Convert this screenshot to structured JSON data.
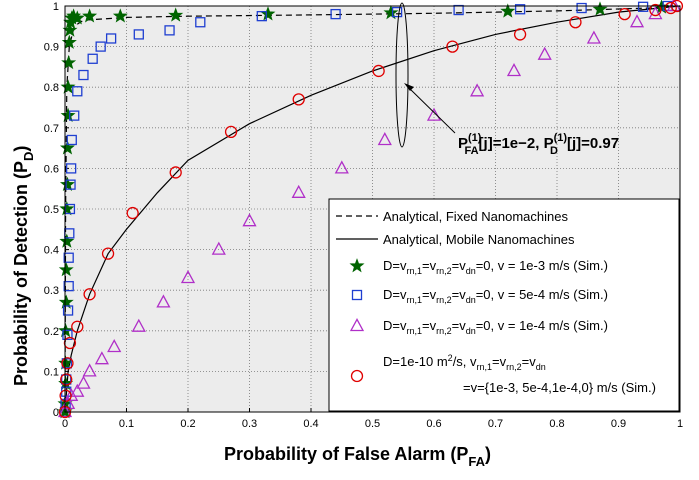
{
  "chart_data": {
    "type": "line",
    "xlabel": {
      "main": "Probability of False Alarm (P",
      "sub": "FA",
      "tail": ")"
    },
    "ylabel": {
      "main": "Probability of Detection (P",
      "sub": "D",
      "tail": ")"
    },
    "xlim": [
      0,
      1
    ],
    "ylim": [
      0,
      1
    ],
    "xticks": [
      "0",
      "0.1",
      "0.2",
      "0.3",
      "0.4",
      "0.5",
      "0.6",
      "0.7",
      "0.8",
      "0.9",
      "1"
    ],
    "yticks": [
      "0",
      "0.1",
      "0.2",
      "0.3",
      "0.4",
      "0.5",
      "0.6",
      "0.7",
      "0.8",
      "0.9",
      "1"
    ],
    "grid": true,
    "legend_placement": "bottom-right",
    "series": [
      {
        "key": "fixed",
        "style": "dashed-line",
        "color": "#000000",
        "points": [
          [
            0,
            0
          ],
          [
            0.001,
            0.5
          ],
          [
            0.003,
            0.8
          ],
          [
            0.007,
            0.9
          ],
          [
            0.015,
            0.95
          ],
          [
            0.03,
            0.965
          ],
          [
            0.1,
            0.972
          ],
          [
            0.2,
            0.975
          ],
          [
            0.4,
            0.978
          ],
          [
            0.6,
            0.982
          ],
          [
            0.8,
            0.988
          ],
          [
            0.95,
            0.995
          ],
          [
            1,
            1
          ]
        ]
      },
      {
        "key": "mobile",
        "style": "solid-line",
        "color": "#000000",
        "points": [
          [
            0,
            0
          ],
          [
            0.005,
            0.1
          ],
          [
            0.01,
            0.14
          ],
          [
            0.02,
            0.2
          ],
          [
            0.04,
            0.29
          ],
          [
            0.07,
            0.39
          ],
          [
            0.1,
            0.45
          ],
          [
            0.15,
            0.54
          ],
          [
            0.2,
            0.62
          ],
          [
            0.3,
            0.71
          ],
          [
            0.4,
            0.78
          ],
          [
            0.5,
            0.84
          ],
          [
            0.6,
            0.89
          ],
          [
            0.7,
            0.93
          ],
          [
            0.8,
            0.96
          ],
          [
            0.9,
            0.985
          ],
          [
            1,
            1
          ]
        ]
      },
      {
        "key": "star",
        "style": "marker-star",
        "color": "#006400",
        "points": [
          [
            0,
            0
          ],
          [
            0,
            0.02
          ],
          [
            0.001,
            0.07
          ],
          [
            0.001,
            0.12
          ],
          [
            0.001,
            0.2
          ],
          [
            0.002,
            0.27
          ],
          [
            0.002,
            0.35
          ],
          [
            0.003,
            0.42
          ],
          [
            0.003,
            0.5
          ],
          [
            0.004,
            0.56
          ],
          [
            0.004,
            0.65
          ],
          [
            0.005,
            0.73
          ],
          [
            0.005,
            0.8
          ],
          [
            0.006,
            0.86
          ],
          [
            0.007,
            0.91
          ],
          [
            0.008,
            0.94
          ],
          [
            0.009,
            0.96
          ],
          [
            0.011,
            0.97
          ],
          [
            0.014,
            0.975
          ],
          [
            0.02,
            0.97
          ],
          [
            0.04,
            0.975
          ],
          [
            0.09,
            0.975
          ],
          [
            0.18,
            0.977
          ],
          [
            0.33,
            0.98
          ],
          [
            0.53,
            0.983
          ],
          [
            0.72,
            0.987
          ],
          [
            0.87,
            0.992
          ],
          [
            0.97,
            0.997
          ]
        ]
      },
      {
        "key": "square",
        "style": "marker-square",
        "color": "#1f3fd1",
        "points": [
          [
            0,
            0
          ],
          [
            0.001,
            0.02
          ],
          [
            0.002,
            0.05
          ],
          [
            0.002,
            0.08
          ],
          [
            0.003,
            0.12
          ],
          [
            0.004,
            0.19
          ],
          [
            0.005,
            0.25
          ],
          [
            0.006,
            0.31
          ],
          [
            0.006,
            0.38
          ],
          [
            0.007,
            0.44
          ],
          [
            0.008,
            0.5
          ],
          [
            0.009,
            0.56
          ],
          [
            0.01,
            0.6
          ],
          [
            0.011,
            0.67
          ],
          [
            0.015,
            0.73
          ],
          [
            0.02,
            0.79
          ],
          [
            0.03,
            0.83
          ],
          [
            0.045,
            0.87
          ],
          [
            0.058,
            0.9
          ],
          [
            0.075,
            0.92
          ],
          [
            0.12,
            0.93
          ],
          [
            0.17,
            0.94
          ],
          [
            0.22,
            0.96
          ],
          [
            0.32,
            0.975
          ],
          [
            0.44,
            0.98
          ],
          [
            0.54,
            0.985
          ],
          [
            0.64,
            0.99
          ],
          [
            0.74,
            0.992
          ],
          [
            0.84,
            0.995
          ],
          [
            0.94,
            0.998
          ],
          [
            0.98,
            1
          ]
        ]
      },
      {
        "key": "triangle",
        "style": "marker-triangle",
        "color": "#b02fc8",
        "points": [
          [
            0,
            0
          ],
          [
            0.005,
            0.02
          ],
          [
            0.01,
            0.04
          ],
          [
            0.02,
            0.05
          ],
          [
            0.03,
            0.07
          ],
          [
            0.04,
            0.1
          ],
          [
            0.06,
            0.13
          ],
          [
            0.08,
            0.16
          ],
          [
            0.12,
            0.21
          ],
          [
            0.16,
            0.27
          ],
          [
            0.2,
            0.33
          ],
          [
            0.25,
            0.4
          ],
          [
            0.3,
            0.47
          ],
          [
            0.38,
            0.54
          ],
          [
            0.45,
            0.6
          ],
          [
            0.52,
            0.67
          ],
          [
            0.6,
            0.73
          ],
          [
            0.67,
            0.79
          ],
          [
            0.73,
            0.84
          ],
          [
            0.78,
            0.88
          ],
          [
            0.86,
            0.92
          ],
          [
            0.93,
            0.96
          ],
          [
            0.96,
            0.98
          ],
          [
            0.99,
            1
          ]
        ]
      },
      {
        "key": "circle",
        "style": "marker-circle",
        "color": "#e00000",
        "points": [
          [
            0,
            0
          ],
          [
            0.001,
            0.04
          ],
          [
            0.002,
            0.08
          ],
          [
            0.004,
            0.12
          ],
          [
            0.008,
            0.17
          ],
          [
            0.02,
            0.21
          ],
          [
            0.04,
            0.29
          ],
          [
            0.07,
            0.39
          ],
          [
            0.11,
            0.49
          ],
          [
            0.18,
            0.59
          ],
          [
            0.27,
            0.69
          ],
          [
            0.38,
            0.77
          ],
          [
            0.51,
            0.84
          ],
          [
            0.63,
            0.9
          ],
          [
            0.74,
            0.93
          ],
          [
            0.83,
            0.96
          ],
          [
            0.91,
            0.98
          ],
          [
            0.96,
            0.99
          ],
          [
            0.985,
            0.995
          ],
          [
            0.995,
            1
          ]
        ]
      }
    ],
    "legend": [
      {
        "key": "fixed",
        "label": "Analytical, Fixed Nanomachines"
      },
      {
        "key": "mobile",
        "label": "Analytical, Mobile Nanomachines"
      },
      {
        "key": "star",
        "label": "D=v_rn,1=v_rn,2=v_dn=0, v = 1e-3 m/s  (Sim.)"
      },
      {
        "key": "square",
        "label": "D=v_rn,1=v_rn,2=v_dn=0, v = 5e-4 m/s  (Sim.)"
      },
      {
        "key": "triangle",
        "label": "D=v_rn,1=v_rn,2=v_dn=0, v = 1e-4 m/s  (Sim.)"
      },
      {
        "key": "circle",
        "label": "D=1e-10 m^2/s, v_rn,1=v_rn,2=v_dn",
        "label2": "=v={1e-3, 5e-4,1e-4,0} m/s (Sim.)"
      }
    ],
    "annotation": {
      "text_fa": "P(1)FA[j]=1e−2,",
      "text_d": "P(1)D[j]=0.97"
    }
  }
}
